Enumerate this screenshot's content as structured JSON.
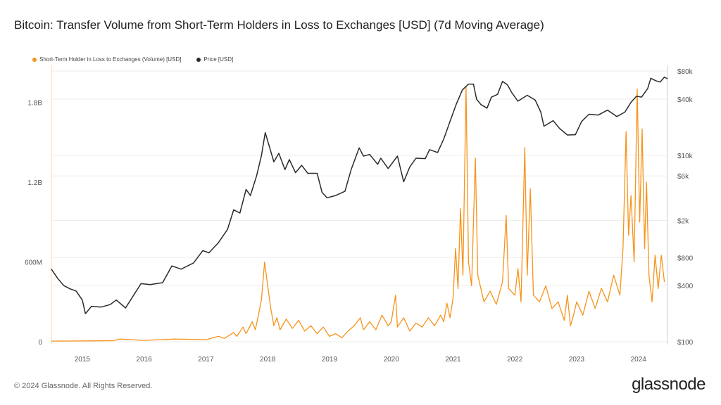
{
  "chart_data": {
    "type": "line",
    "title": "Bitcoin: Transfer Volume from Short-Term Holders in Loss to Exchanges [USD] (7d Moving Average)",
    "xlim": [
      2014.5,
      2024.47
    ],
    "x_ticks": [
      "2015",
      "2016",
      "2017",
      "2018",
      "2019",
      "2020",
      "2021",
      "2022",
      "2023",
      "2024"
    ],
    "left_axis": {
      "ylim": [
        0,
        2100000000
      ],
      "ticks": [
        {
          "v": 0,
          "label": "0"
        },
        {
          "v": 600000000,
          "label": "600M"
        },
        {
          "v": 1200000000,
          "label": "1.2B"
        },
        {
          "v": 1800000000,
          "label": "1.8B"
        }
      ]
    },
    "right_axis": {
      "scale": "log",
      "ylim": [
        100,
        80000
      ],
      "ticks": [
        {
          "v": 100,
          "label": "$100"
        },
        {
          "v": 400,
          "label": "$400"
        },
        {
          "v": 800,
          "label": "$800"
        },
        {
          "v": 2000,
          "label": "$2k"
        },
        {
          "v": 6000,
          "label": "$6k"
        },
        {
          "v": 10000,
          "label": "$10k"
        },
        {
          "v": 40000,
          "label": "$40k"
        },
        {
          "v": 80000,
          "label": "$80k"
        }
      ]
    },
    "series": [
      {
        "name": "Short-Term Holder in Loss to Exchanges (Volume) [USD]",
        "color": "#f7931a",
        "axis": "left",
        "unit": "millions USD",
        "points": [
          [
            2014.5,
            5
          ],
          [
            2015.0,
            6
          ],
          [
            2015.5,
            8
          ],
          [
            2015.6,
            20
          ],
          [
            2016.0,
            10
          ],
          [
            2016.5,
            20
          ],
          [
            2017.0,
            15
          ],
          [
            2017.2,
            40
          ],
          [
            2017.3,
            25
          ],
          [
            2017.45,
            70
          ],
          [
            2017.5,
            40
          ],
          [
            2017.6,
            110
          ],
          [
            2017.65,
            60
          ],
          [
            2017.75,
            150
          ],
          [
            2017.8,
            90
          ],
          [
            2017.85,
            200
          ],
          [
            2017.9,
            320
          ],
          [
            2017.95,
            600
          ],
          [
            2018.0,
            420
          ],
          [
            2018.05,
            250
          ],
          [
            2018.1,
            120
          ],
          [
            2018.15,
            180
          ],
          [
            2018.2,
            90
          ],
          [
            2018.3,
            170
          ],
          [
            2018.4,
            100
          ],
          [
            2018.5,
            160
          ],
          [
            2018.6,
            80
          ],
          [
            2018.7,
            120
          ],
          [
            2018.8,
            60
          ],
          [
            2018.9,
            110
          ],
          [
            2019.0,
            40
          ],
          [
            2019.1,
            60
          ],
          [
            2019.2,
            30
          ],
          [
            2019.3,
            80
          ],
          [
            2019.4,
            120
          ],
          [
            2019.5,
            180
          ],
          [
            2019.55,
            90
          ],
          [
            2019.65,
            150
          ],
          [
            2019.75,
            90
          ],
          [
            2019.85,
            200
          ],
          [
            2019.95,
            120
          ],
          [
            2020.0,
            150
          ],
          [
            2020.07,
            350
          ],
          [
            2020.1,
            110
          ],
          [
            2020.2,
            180
          ],
          [
            2020.3,
            80
          ],
          [
            2020.4,
            140
          ],
          [
            2020.5,
            110
          ],
          [
            2020.6,
            180
          ],
          [
            2020.7,
            120
          ],
          [
            2020.8,
            200
          ],
          [
            2020.85,
            150
          ],
          [
            2020.9,
            290
          ],
          [
            2020.95,
            180
          ],
          [
            2021.0,
            330
          ],
          [
            2021.04,
            700
          ],
          [
            2021.08,
            400
          ],
          [
            2021.12,
            1000
          ],
          [
            2021.16,
            500
          ],
          [
            2021.21,
            1920
          ],
          [
            2021.25,
            600
          ],
          [
            2021.3,
            420
          ],
          [
            2021.36,
            1380
          ],
          [
            2021.4,
            500
          ],
          [
            2021.5,
            300
          ],
          [
            2021.6,
            380
          ],
          [
            2021.7,
            280
          ],
          [
            2021.8,
            450
          ],
          [
            2021.86,
            950
          ],
          [
            2021.9,
            400
          ],
          [
            2022.0,
            350
          ],
          [
            2022.05,
            550
          ],
          [
            2022.1,
            300
          ],
          [
            2022.16,
            1460
          ],
          [
            2022.2,
            500
          ],
          [
            2022.25,
            1150
          ],
          [
            2022.3,
            350
          ],
          [
            2022.4,
            300
          ],
          [
            2022.5,
            420
          ],
          [
            2022.6,
            250
          ],
          [
            2022.7,
            300
          ],
          [
            2022.8,
            160
          ],
          [
            2022.85,
            350
          ],
          [
            2022.9,
            120
          ],
          [
            2022.95,
            200
          ],
          [
            2023.0,
            300
          ],
          [
            2023.1,
            200
          ],
          [
            2023.2,
            380
          ],
          [
            2023.3,
            250
          ],
          [
            2023.4,
            400
          ],
          [
            2023.5,
            300
          ],
          [
            2023.6,
            500
          ],
          [
            2023.7,
            350
          ],
          [
            2023.75,
            700
          ],
          [
            2023.8,
            1580
          ],
          [
            2023.84,
            800
          ],
          [
            2023.88,
            1100
          ],
          [
            2023.93,
            600
          ],
          [
            2023.98,
            1900
          ],
          [
            2024.02,
            900
          ],
          [
            2024.06,
            1600
          ],
          [
            2024.1,
            700
          ],
          [
            2024.13,
            1200
          ],
          [
            2024.17,
            500
          ],
          [
            2024.22,
            300
          ],
          [
            2024.27,
            650
          ],
          [
            2024.32,
            400
          ],
          [
            2024.37,
            650
          ],
          [
            2024.42,
            450
          ]
        ]
      },
      {
        "name": "Price [USD]",
        "color": "#2a2a2a",
        "axis": "right",
        "points": [
          [
            2014.5,
            600
          ],
          [
            2014.6,
            480
          ],
          [
            2014.7,
            400
          ],
          [
            2014.8,
            370
          ],
          [
            2014.9,
            350
          ],
          [
            2015.0,
            280
          ],
          [
            2015.05,
            200
          ],
          [
            2015.15,
            240
          ],
          [
            2015.3,
            235
          ],
          [
            2015.45,
            250
          ],
          [
            2015.55,
            280
          ],
          [
            2015.7,
            230
          ],
          [
            2015.85,
            330
          ],
          [
            2015.95,
            420
          ],
          [
            2016.1,
            410
          ],
          [
            2016.3,
            430
          ],
          [
            2016.45,
            650
          ],
          [
            2016.6,
            600
          ],
          [
            2016.8,
            700
          ],
          [
            2016.95,
            950
          ],
          [
            2017.05,
            900
          ],
          [
            2017.2,
            1150
          ],
          [
            2017.35,
            1600
          ],
          [
            2017.45,
            2600
          ],
          [
            2017.55,
            2400
          ],
          [
            2017.65,
            4300
          ],
          [
            2017.72,
            3700
          ],
          [
            2017.82,
            6000
          ],
          [
            2017.9,
            10000
          ],
          [
            2017.96,
            17500
          ],
          [
            2018.05,
            11000
          ],
          [
            2018.1,
            8500
          ],
          [
            2018.18,
            10500
          ],
          [
            2018.28,
            7000
          ],
          [
            2018.35,
            9000
          ],
          [
            2018.45,
            6500
          ],
          [
            2018.55,
            7800
          ],
          [
            2018.65,
            6400
          ],
          [
            2018.8,
            6400
          ],
          [
            2018.88,
            4000
          ],
          [
            2018.96,
            3500
          ],
          [
            2019.1,
            3700
          ],
          [
            2019.25,
            4100
          ],
          [
            2019.35,
            7000
          ],
          [
            2019.48,
            12000
          ],
          [
            2019.55,
            9800
          ],
          [
            2019.65,
            10200
          ],
          [
            2019.78,
            8000
          ],
          [
            2019.83,
            9300
          ],
          [
            2019.95,
            7200
          ],
          [
            2020.1,
            9800
          ],
          [
            2020.2,
            5200
          ],
          [
            2020.3,
            7500
          ],
          [
            2020.4,
            9300
          ],
          [
            2020.55,
            9200
          ],
          [
            2020.62,
            11500
          ],
          [
            2020.75,
            10700
          ],
          [
            2020.85,
            15000
          ],
          [
            2020.95,
            23000
          ],
          [
            2021.05,
            35000
          ],
          [
            2021.15,
            50000
          ],
          [
            2021.25,
            58000
          ],
          [
            2021.33,
            58000
          ],
          [
            2021.38,
            40000
          ],
          [
            2021.45,
            35000
          ],
          [
            2021.55,
            32000
          ],
          [
            2021.62,
            42000
          ],
          [
            2021.72,
            45000
          ],
          [
            2021.8,
            62000
          ],
          [
            2021.88,
            57000
          ],
          [
            2021.95,
            47000
          ],
          [
            2022.05,
            38000
          ],
          [
            2022.2,
            44000
          ],
          [
            2022.33,
            39000
          ],
          [
            2022.42,
            29000
          ],
          [
            2022.47,
            20500
          ],
          [
            2022.55,
            22000
          ],
          [
            2022.62,
            23500
          ],
          [
            2022.72,
            19500
          ],
          [
            2022.85,
            16500
          ],
          [
            2022.98,
            16600
          ],
          [
            2023.08,
            23000
          ],
          [
            2023.2,
            27500
          ],
          [
            2023.35,
            27000
          ],
          [
            2023.5,
            30500
          ],
          [
            2023.65,
            26000
          ],
          [
            2023.78,
            29000
          ],
          [
            2023.88,
            37000
          ],
          [
            2023.97,
            43000
          ],
          [
            2024.05,
            42000
          ],
          [
            2024.15,
            52000
          ],
          [
            2024.2,
            67000
          ],
          [
            2024.28,
            63000
          ],
          [
            2024.35,
            61000
          ],
          [
            2024.42,
            69000
          ],
          [
            2024.47,
            66000
          ]
        ]
      }
    ]
  },
  "header": {
    "title": "Bitcoin: Transfer Volume from Short-Term Holders in Loss to Exchanges [USD] (7d Moving Average)"
  },
  "legend": {
    "volume": "Short-Term Holder in Loss to Exchanges (Volume) [USD]",
    "price": "Price [USD]",
    "volume_color": "#f7931a",
    "price_color": "#2a2a2a"
  },
  "footer": {
    "copyright": "© 2024 Glassnode. All Rights Reserved.",
    "logo": "glassnode"
  }
}
